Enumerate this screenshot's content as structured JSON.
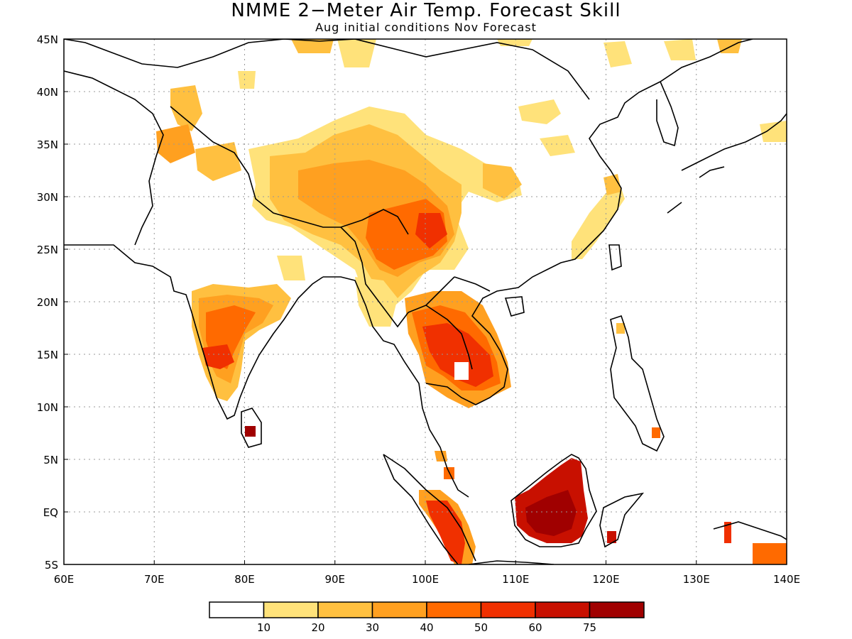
{
  "title": "NMME 2−Meter Air Temp. Forecast Skill",
  "subtitle": "Aug initial conditions  Nov Forecast",
  "map": {
    "lon_range": [
      60,
      140
    ],
    "lat_range": [
      -5,
      45
    ],
    "lon_ticks": [
      "60E",
      "70E",
      "80E",
      "90E",
      "100E",
      "110E",
      "120E",
      "130E",
      "140E"
    ],
    "lat_ticks": [
      "5S",
      "EQ",
      "5N",
      "10N",
      "15N",
      "20N",
      "25N",
      "30N",
      "35N",
      "40N",
      "45N"
    ],
    "grid": "dotted"
  },
  "colorbar": {
    "colors": [
      "#ffffff",
      "#ffe27a",
      "#ffc040",
      "#ffa020",
      "#ff6a00",
      "#f03000",
      "#c81000",
      "#a00000"
    ],
    "labels": [
      "10",
      "20",
      "30",
      "40",
      "50",
      "60",
      "75"
    ]
  },
  "skill_regions": [
    {
      "region": "Borneo",
      "skill": "60-75"
    },
    {
      "region": "Cambodia / Thailand",
      "skill": "50-60"
    },
    {
      "region": "Central India",
      "skill": "40-60"
    },
    {
      "region": "Eastern Tibet / Yunnan",
      "skill": "40-50"
    },
    {
      "region": "Tibetan Plateau",
      "skill": "20-40"
    },
    {
      "region": "Sri Lanka",
      "skill": "60-75"
    },
    {
      "region": "Sumatra",
      "skill": "40-60"
    }
  ]
}
